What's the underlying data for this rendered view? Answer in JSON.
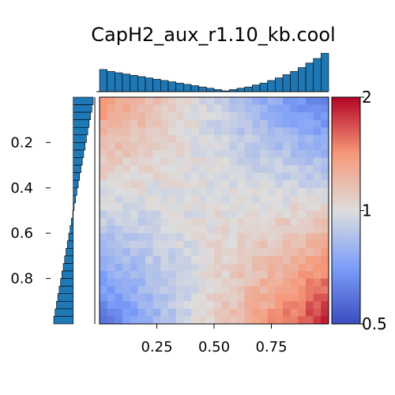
{
  "chart_data": {
    "type": "heatmap",
    "title": "CapH2_aux_r1.10_kb.cool",
    "x_ticks": [
      "0.25",
      "0.50",
      "0.75"
    ],
    "x_tick_values": [
      0.25,
      0.5,
      0.75
    ],
    "y_ticks": [
      "0.2",
      "0.4",
      "0.6",
      "0.8"
    ],
    "y_tick_values": [
      0.2,
      0.4,
      0.6,
      0.8
    ],
    "xlim": [
      0.0,
      1.0
    ],
    "ylim": [
      0.0,
      1.0
    ],
    "colormap": "coolwarm",
    "color_scale": "log",
    "colorbar": {
      "vmin": 0.5,
      "vmax": 2,
      "tick_labels": [
        "2",
        "1",
        "0.5"
      ],
      "tick_values": [
        2,
        1,
        0.5
      ]
    },
    "grid_size": 30,
    "matrix_model": {
      "description_of_pattern": "high (red) along main diagonal, low (blue) at top-right and bottom-left corners",
      "corner_top_left": 1.45,
      "corner_top_right": 0.6,
      "corner_bottom_left": 0.6,
      "corner_bottom_right": 1.9,
      "center": 1.05
    },
    "top_marginal": {
      "type": "bar",
      "values": [
        0.33,
        0.3,
        0.28,
        0.26,
        0.24,
        0.22,
        0.2,
        0.18,
        0.16,
        0.14,
        0.12,
        0.1,
        0.08,
        0.06,
        0.04,
        0.02,
        0.0,
        0.02,
        0.04,
        0.06,
        0.09,
        0.12,
        0.16,
        0.2,
        0.25,
        0.3,
        0.36,
        0.43,
        0.5,
        0.58
      ],
      "baseline": 0.0
    },
    "left_marginal": {
      "type": "bar",
      "values": [
        0.88,
        0.82,
        0.76,
        0.7,
        0.64,
        0.58,
        0.52,
        0.46,
        0.4,
        0.34,
        0.28,
        0.22,
        0.16,
        0.1,
        0.04,
        -0.02,
        -0.08,
        -0.14,
        -0.2,
        -0.26,
        -0.32,
        -0.38,
        -0.44,
        -0.5,
        -0.56,
        -0.62,
        -0.68,
        -0.74,
        -0.8,
        -0.86
      ]
    }
  },
  "colors": {
    "bar_fill": "#1f77b4",
    "bar_edge": "#000000"
  }
}
